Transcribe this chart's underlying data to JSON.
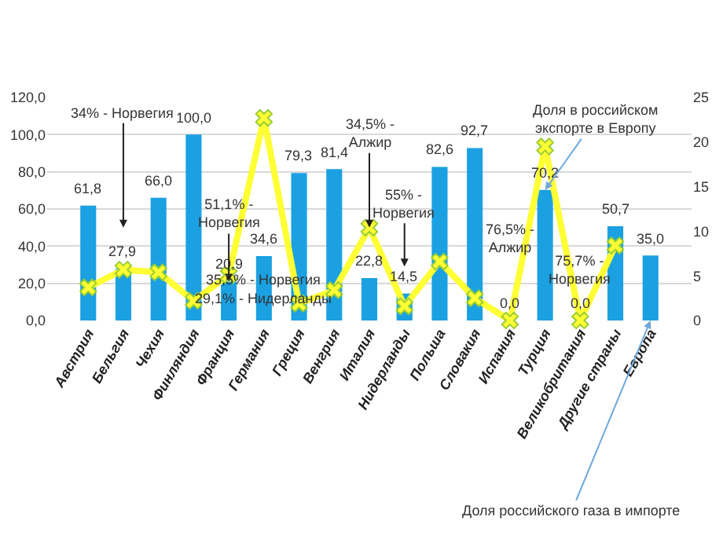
{
  "chart_data": {
    "type": "bar",
    "categories": [
      "Австрия",
      "Бельгия",
      "Чехия",
      "Финляндия",
      "Франция",
      "Германия",
      "Греция",
      "Венгрия",
      "Италия",
      "Нидерланды",
      "Польша",
      "Словакия",
      "Испания",
      "Турция",
      "Великобритания",
      "Другие страны",
      "Европа"
    ],
    "series": [
      {
        "color": "#1ba1e2",
        "values": [
          61.8,
          27.9,
          66.0,
          100.0,
          20.9,
          34.6,
          79.3,
          81.4,
          22.8,
          14.5,
          82.6,
          92.7,
          0.0,
          70.2,
          0.0,
          50.7,
          35.0
        ],
        "value_labels": [
          "61,8",
          "27,9",
          "66,0",
          "100,0",
          "20,9",
          "34,6",
          "79,3",
          "81,4",
          "22,8",
          "14,5",
          "82,6",
          "92,7",
          "0,0",
          "70,2",
          "0,0",
          "50,7",
          "35,0"
        ]
      },
      {
        "type": "line",
        "axis": "y2",
        "color": "#ffff33",
        "marker": "cross",
        "values": [
          3.7,
          5.7,
          5.4,
          2.2,
          5.1,
          22.7,
          1.9,
          3.4,
          10.4,
          1.6,
          6.6,
          2.5,
          0,
          19.5,
          0,
          8.4,
          null
        ]
      }
    ],
    "ylim": [
      0,
      120
    ],
    "yticks": [
      {
        "value": 0,
        "label": "0,0"
      },
      {
        "value": 20,
        "label": "20,0"
      },
      {
        "value": 40,
        "label": "40,0"
      },
      {
        "value": 60,
        "label": "60,0"
      },
      {
        "value": 80,
        "label": "80,0"
      },
      {
        "value": 100,
        "label": "100,0"
      },
      {
        "value": 120,
        "label": "120,0"
      }
    ],
    "y2lim": [
      0,
      25
    ],
    "y2ticks": [
      0,
      5,
      10,
      15,
      20,
      25
    ],
    "grid": "y",
    "annotations": [
      "34% - Норвегия",
      {
        "text": "51,1% -\nНорвегия",
        "x": "Франция",
        "y": 20.9
      },
      "35,5% - Норвегия",
      "29,1% - Нидерланды",
      {
        "text": "34,5% -\nАлжир",
        "x": "Италия",
        "y": 50
      },
      "55% -\nНорвегия",
      "76,5% -\nАлжир",
      "75,7% -\nНорвегия",
      {
        "text": "Доля в российском\nэкспорте в Европу",
        "x": "Турция",
        "y": 70.2
      },
      "Доля российского газа в импорте"
    ]
  }
}
